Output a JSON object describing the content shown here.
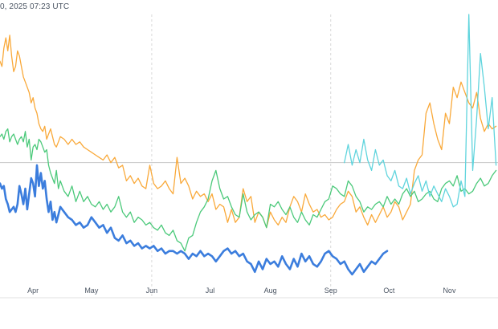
{
  "header": {
    "timestamp": "0, 2025 07:23 UTC"
  },
  "chart_data": {
    "type": "line",
    "title": "",
    "xlabel": "",
    "ylabel": "",
    "grid": true,
    "x_ticks": [
      "Apr",
      "May",
      "Jun",
      "Jul",
      "Aug",
      "Sep",
      "Oct",
      "Nov"
    ],
    "x_tick_days": [
      6,
      36,
      67,
      97,
      128,
      159,
      189,
      220
    ],
    "x_range_days": [
      -11,
      245
    ],
    "y_range": [
      0,
      100
    ],
    "reference_line": 43,
    "dashed_gridlines_at_days": [
      67,
      159
    ],
    "colors": {
      "orange": "#f9a93a",
      "green": "#4bc97a",
      "blue": "#3b7ddd",
      "cyan": "#5fd4dd",
      "reference": "#c8c8c8",
      "axis": "#e2e2e2"
    },
    "series": [
      {
        "name": "orange",
        "color": "#f9a93a",
        "x": [
          -11,
          -10,
          -9,
          -8,
          -7,
          -6,
          -5,
          -4,
          -3,
          -2,
          -1,
          0,
          1,
          2,
          3,
          4,
          5,
          6,
          7,
          8,
          9,
          10,
          11,
          12,
          13,
          14,
          15,
          16,
          17,
          18,
          19,
          20,
          22,
          24,
          26,
          28,
          30,
          32,
          34,
          36,
          38,
          40,
          42,
          44,
          46,
          48,
          50,
          52,
          54,
          56,
          58,
          60,
          62,
          64,
          66,
          68,
          70,
          72,
          74,
          76,
          78,
          80,
          82,
          84,
          86,
          88,
          90,
          92,
          94,
          96,
          98,
          100,
          102,
          104,
          106,
          108,
          110,
          112,
          114,
          116,
          118,
          120,
          122,
          124,
          126,
          128,
          130,
          132,
          134,
          136,
          138,
          140,
          142,
          144,
          146,
          148,
          150,
          152,
          154,
          156,
          158,
          160,
          162,
          164,
          166,
          168,
          170,
          172,
          174,
          176,
          178,
          180,
          182,
          184,
          186,
          188,
          190,
          192,
          194,
          196,
          198,
          200,
          202,
          204,
          206,
          208,
          210,
          212,
          214,
          216,
          218,
          220,
          222,
          224,
          226,
          228,
          230,
          232,
          234,
          236,
          238,
          240,
          242,
          244
        ],
        "y": [
          82,
          80,
          87,
          91,
          86,
          92,
          84,
          78,
          80,
          86,
          84,
          80,
          76,
          74,
          72,
          70,
          66,
          68,
          64,
          62,
          58,
          56,
          55,
          57,
          52,
          54,
          56,
          53,
          50,
          49,
          51,
          53,
          52,
          50,
          52,
          50,
          51,
          49,
          48,
          47,
          46,
          45,
          44,
          46,
          43,
          45,
          41,
          42,
          36,
          38,
          35,
          37,
          34,
          33,
          42,
          35,
          33,
          34,
          36,
          33,
          31,
          45,
          35,
          37,
          34,
          29,
          32,
          30,
          31,
          28,
          31,
          25,
          27,
          26,
          20,
          25,
          20,
          22,
          33,
          28,
          30,
          20,
          24,
          22,
          18,
          24,
          21,
          19,
          22,
          20,
          26,
          30,
          28,
          24,
          31,
          27,
          24,
          25,
          22,
          23,
          21,
          22,
          25,
          27,
          28,
          32,
          30,
          24,
          26,
          22,
          19,
          23,
          20,
          23,
          26,
          22,
          24,
          28,
          26,
          21,
          24,
          27,
          40,
          44,
          46,
          62,
          66,
          58,
          52,
          48,
          62,
          58,
          72,
          68,
          74,
          70,
          66,
          64,
          70,
          60,
          55,
          58,
          56,
          57
        ]
      },
      {
        "name": "green",
        "color": "#4bc97a",
        "x": [
          -11,
          -10,
          -9,
          -8,
          -7,
          -6,
          -5,
          -4,
          -3,
          -2,
          -1,
          0,
          1,
          2,
          3,
          4,
          5,
          6,
          7,
          8,
          9,
          10,
          11,
          12,
          13,
          14,
          15,
          16,
          17,
          18,
          19,
          20,
          22,
          24,
          26,
          28,
          30,
          32,
          34,
          36,
          38,
          40,
          42,
          44,
          46,
          48,
          50,
          52,
          54,
          56,
          58,
          60,
          62,
          64,
          66,
          68,
          70,
          72,
          74,
          76,
          78,
          80,
          82,
          84,
          86,
          88,
          90,
          92,
          94,
          96,
          98,
          100,
          102,
          104,
          106,
          108,
          110,
          112,
          114,
          116,
          118,
          120,
          122,
          124,
          126,
          128,
          130,
          132,
          134,
          136,
          138,
          140,
          142,
          144,
          146,
          148,
          150,
          152,
          154,
          156,
          158,
          160,
          162,
          164,
          166,
          168,
          170,
          172,
          174,
          176,
          178,
          180,
          182,
          184,
          186,
          188,
          190,
          192,
          194,
          196,
          198,
          200,
          202,
          204,
          206,
          208,
          210,
          212,
          214,
          216,
          218,
          220,
          222,
          224,
          226,
          228,
          230,
          232,
          234,
          236,
          238,
          240,
          242,
          244
        ],
        "y": [
          53,
          54,
          52,
          55,
          56,
          51,
          53,
          54,
          52,
          50,
          52,
          53,
          51,
          55,
          49,
          52,
          44,
          49,
          50,
          48,
          52,
          51,
          49,
          47,
          48,
          42,
          39,
          37,
          35,
          40,
          33,
          36,
          32,
          30,
          34,
          28,
          32,
          28,
          30,
          27,
          26,
          28,
          25,
          27,
          24,
          26,
          30,
          24,
          22,
          24,
          20,
          22,
          21,
          19,
          20,
          18,
          17,
          19,
          16,
          15,
          17,
          13,
          12,
          9,
          14,
          15,
          20,
          24,
          26,
          29,
          36,
          40,
          33,
          29,
          30,
          26,
          23,
          22,
          31,
          24,
          21,
          23,
          24,
          22,
          18,
          27,
          26,
          28,
          25,
          23,
          26,
          22,
          20,
          24,
          21,
          19,
          23,
          22,
          25,
          28,
          29,
          34,
          33,
          31,
          30,
          36,
          34,
          30,
          28,
          24,
          26,
          25,
          27,
          28,
          26,
          30,
          27,
          29,
          27,
          31,
          33,
          30,
          32,
          28,
          29,
          31,
          32,
          29,
          28,
          33,
          35,
          36,
          34,
          38,
          32,
          33,
          31,
          32,
          35,
          37,
          34,
          35,
          38,
          40
        ]
      },
      {
        "name": "blue",
        "color": "#3b7ddd",
        "x": [
          -11,
          -10,
          -9,
          -8,
          -7,
          -6,
          -5,
          -4,
          -3,
          -2,
          -1,
          0,
          1,
          2,
          3,
          4,
          5,
          6,
          7,
          8,
          9,
          10,
          11,
          12,
          13,
          14,
          15,
          16,
          17,
          18,
          19,
          20,
          22,
          24,
          26,
          28,
          30,
          32,
          34,
          36,
          38,
          40,
          42,
          44,
          46,
          48,
          50,
          52,
          54,
          56,
          58,
          60,
          62,
          64,
          66,
          68,
          70,
          72,
          74,
          76,
          78,
          80,
          82,
          84,
          86,
          88,
          90,
          92,
          94,
          96,
          98,
          100,
          102,
          104,
          106,
          108,
          110,
          112,
          114,
          116,
          118,
          120,
          122,
          124,
          126,
          128,
          130,
          132,
          134,
          136,
          138,
          140,
          142,
          144,
          146,
          148,
          150,
          152,
          154,
          156,
          158,
          160,
          162,
          164,
          166,
          168,
          170,
          172,
          174,
          176,
          178,
          180,
          182,
          184,
          186,
          188
        ],
        "y": [
          35,
          33,
          34,
          29,
          27,
          24,
          25,
          26,
          24,
          27,
          34,
          31,
          27,
          33,
          25,
          31,
          37,
          35,
          30,
          42,
          34,
          39,
          33,
          36,
          29,
          24,
          28,
          21,
          24,
          20,
          23,
          26,
          24,
          22,
          21,
          19,
          20,
          18,
          19,
          22,
          20,
          18,
          19,
          16,
          18,
          14,
          13,
          15,
          12,
          13,
          11,
          12,
          10,
          11,
          10,
          11,
          9,
          10,
          8,
          9,
          9,
          8,
          9,
          8,
          6,
          8,
          7,
          9,
          7,
          8,
          7,
          5,
          7,
          9,
          10,
          8,
          9,
          7,
          8,
          5,
          4,
          1,
          5,
          2,
          6,
          4,
          5,
          3,
          7,
          4,
          2,
          6,
          3,
          8,
          5,
          7,
          4,
          3,
          5,
          8,
          9,
          7,
          6,
          4,
          5,
          2,
          0,
          2,
          4,
          1,
          3,
          5,
          4,
          6,
          8,
          9
        ]
      },
      {
        "name": "cyan",
        "color": "#5fd4dd",
        "x": [
          166,
          168,
          170,
          172,
          174,
          176,
          178,
          180,
          182,
          184,
          186,
          188,
          190,
          192,
          194,
          196,
          198,
          200,
          202,
          204,
          206,
          208,
          210,
          212,
          214,
          216,
          218,
          220,
          222,
          224,
          226,
          228,
          230,
          232,
          234,
          236,
          238,
          240,
          242,
          244
        ],
        "y": [
          43,
          50,
          42,
          48,
          43,
          52,
          44,
          40,
          48,
          42,
          44,
          38,
          36,
          40,
          34,
          33,
          37,
          31,
          35,
          38,
          32,
          36,
          30,
          34,
          31,
          28,
          33,
          30,
          26,
          27,
          36,
          30,
          100,
          40,
          60,
          85,
          72,
          56,
          68,
          42
        ]
      }
    ]
  }
}
